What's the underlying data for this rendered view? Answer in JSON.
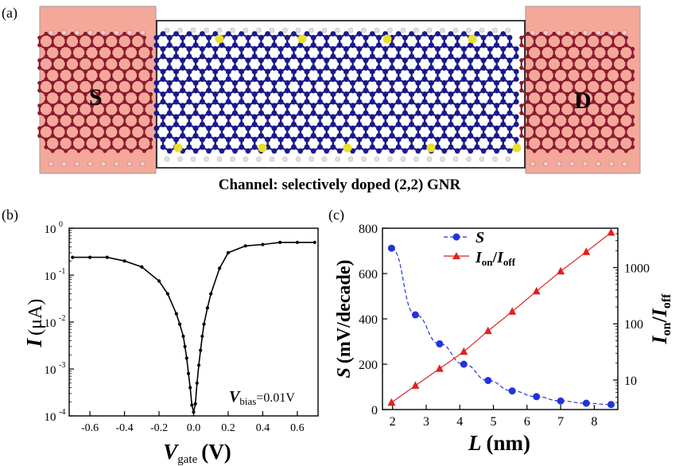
{
  "panel_a": {
    "tag": "(a)",
    "source_label": "S",
    "drain_label": "D",
    "caption": "Channel: selectively doped (2,2) GNR",
    "colors": {
      "electrode": "#f4a89a",
      "electrode_atom": "#8b1a2e",
      "channel_atom": "#1a1a8c",
      "dopant": "#e8e02a",
      "hydrogen": "#e0e0e0",
      "bond": "#c8c8d8"
    }
  },
  "panel_b": {
    "tag": "(b)",
    "ylabel_main": "I",
    "ylabel_unit": "(μA)",
    "xlabel_main": "V",
    "xlabel_sub": "gate",
    "xlabel_unit": "(V)",
    "annotation_main": "V",
    "annotation_sub": "bias",
    "annotation_value": "=0.01V"
  },
  "panel_c": {
    "tag": "(c)",
    "ylabel_left": "S (mV/decade)",
    "ylabel_left_main": "S",
    "ylabel_left_unit": "(mV/decade)",
    "ylabel_right_a": "I",
    "ylabel_right_sub_a": "on",
    "ylabel_right_sep": "/",
    "ylabel_right_b": "I",
    "ylabel_right_sub_b": "off",
    "xlabel_main": "L",
    "xlabel_unit": "(nm)",
    "legend": {
      "s": "S",
      "ratio_a": "I",
      "ratio_sub_a": "on",
      "ratio_sep": "/",
      "ratio_b": "I",
      "ratio_sub_b": "off"
    }
  },
  "chart_data": [
    {
      "type": "line",
      "panel": "b",
      "xlabel": "Vgate (V)",
      "ylabel": "I (μA)",
      "ylog": true,
      "xlim": [
        -0.72,
        0.72
      ],
      "ylim": [
        0.0001,
        1
      ],
      "xticks": [
        "-0.6",
        "-0.4",
        "-0.2",
        "0.0",
        "0.2",
        "0.4",
        "0.6"
      ],
      "xtick_values": [
        -0.6,
        -0.4,
        -0.2,
        0.0,
        0.2,
        0.4,
        0.6
      ],
      "yticks": [
        "10",
        "10",
        "10",
        "10",
        "10"
      ],
      "ytick_exps": [
        "0",
        "-1",
        "-2",
        "-3",
        "-4"
      ],
      "ytick_values": [
        1,
        0.1,
        0.01,
        0.001,
        0.0001
      ],
      "series": [
        {
          "color": "#000000",
          "x": [
            -0.7,
            -0.6,
            -0.5,
            -0.4,
            -0.3,
            -0.2,
            -0.15,
            -0.1,
            -0.08,
            -0.06,
            -0.05,
            -0.04,
            -0.03,
            -0.02,
            -0.01,
            0.0,
            0.01,
            0.02,
            0.03,
            0.04,
            0.05,
            0.06,
            0.08,
            0.1,
            0.15,
            0.2,
            0.3,
            0.4,
            0.5,
            0.6,
            0.7
          ],
          "y": [
            0.24,
            0.24,
            0.24,
            0.2,
            0.15,
            0.075,
            0.04,
            0.015,
            0.009,
            0.005,
            0.003,
            0.0017,
            0.0008,
            0.0004,
            0.00017,
            0.00012,
            0.00018,
            0.0005,
            0.0012,
            0.0025,
            0.005,
            0.009,
            0.02,
            0.04,
            0.14,
            0.3,
            0.42,
            0.45,
            0.5,
            0.5,
            0.5
          ]
        }
      ]
    },
    {
      "type": "line",
      "panel": "c",
      "xlabel": "L (nm)",
      "ylabel": "S (mV/decade)",
      "ylabel_right": "Ion/Ioff",
      "xlim": [
        1.7,
        8.7
      ],
      "ylim_left": [
        0,
        800
      ],
      "ylim_right": [
        3,
        5000
      ],
      "ylog_right": true,
      "xticks": [
        "2",
        "3",
        "4",
        "5",
        "6",
        "7",
        "8"
      ],
      "xtick_values": [
        2,
        3,
        4,
        5,
        6,
        7,
        8
      ],
      "yticks_left": [
        "0",
        "200",
        "400",
        "600",
        "800"
      ],
      "ytick_left_values": [
        0,
        200,
        400,
        600,
        800
      ],
      "yticks_right": [
        "10",
        "100",
        "1000"
      ],
      "ytick_right_values": [
        10,
        100,
        1000
      ],
      "series": [
        {
          "name": "S",
          "axis": "left",
          "color": "#2233dd",
          "marker": "circle",
          "x": [
            1.97,
            2.68,
            3.4,
            4.12,
            4.84,
            5.56,
            6.28,
            7.0,
            7.76,
            8.5
          ],
          "y": [
            712,
            418,
            290,
            200,
            128,
            82,
            57,
            38,
            28,
            22
          ]
        },
        {
          "name": "Ion/Ioff",
          "axis": "right",
          "color": "#dd2222",
          "marker": "triangle",
          "x": [
            1.97,
            2.68,
            3.4,
            4.12,
            4.84,
            5.56,
            6.28,
            7.0,
            7.76,
            8.5
          ],
          "y": [
            4,
            8,
            16,
            32,
            75,
            165,
            380,
            860,
            1900,
            4200
          ]
        }
      ]
    }
  ]
}
